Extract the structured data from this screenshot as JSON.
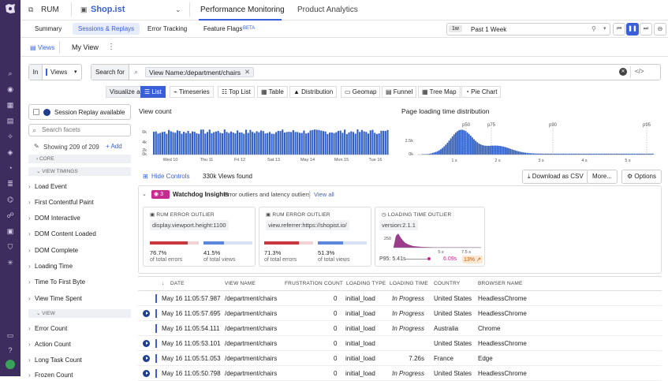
{
  "app": {
    "name": "RUM",
    "app_name": "Shop.ist"
  },
  "header_tabs": [
    "Performance Monitoring",
    "Product Analytics"
  ],
  "subtabs": [
    "Summary",
    "Sessions & Replays",
    "Error Tracking",
    "Feature Flags"
  ],
  "beta_label": "BETA",
  "time": {
    "short": "1w",
    "label": "Past 1 Week"
  },
  "views_tab": "Views",
  "my_view": "My View",
  "query": {
    "in_label": "In",
    "scope": "Views",
    "search_for": "Search for",
    "value": "View Name:/department/chairs"
  },
  "visualize_as": "Visualize as",
  "viz_options": [
    "List",
    "Timeseries",
    "Top List",
    "Table",
    "Distribution",
    "Geomap",
    "Funnel",
    "Tree Map",
    "Pie Chart"
  ],
  "sidebar": {
    "replay_filter": "Session Replay available",
    "search_placeholder": "Search facets",
    "showing": "Showing 209 of 209",
    "add": "Add",
    "sections": [
      "CORE",
      "VIEW TIMINGS",
      "VIEW"
    ],
    "timings": [
      "Load Event",
      "First Contentful Paint",
      "DOM Interactive",
      "DOM Content Loaded",
      "DOM Complete",
      "Loading Time",
      "Time To First Byte",
      "View Time Spent"
    ],
    "view_facets": [
      "Error Count",
      "Action Count",
      "Long Task Count",
      "Frozen Count"
    ]
  },
  "count_chart": {
    "title": "View count",
    "yticks": [
      "6k",
      "4k",
      "2k",
      "0k"
    ],
    "xticks": [
      "Wed 10",
      "Thu 11",
      "Fri 12",
      "Sat 13",
      "May 14",
      "Mon 15",
      "Tue 16"
    ]
  },
  "dist_chart": {
    "title": "Page loading time distribution",
    "yticks": [
      "2.5k",
      "0k"
    ],
    "xticks": [
      "1 s",
      "2 s",
      "3 s",
      "4 s",
      "5 s"
    ],
    "percentiles": [
      "p50",
      "p75",
      "p90",
      "p95"
    ]
  },
  "controls": {
    "hide": "Hide Controls",
    "found": "330k Views found",
    "download": "Download as CSV",
    "more": "More...",
    "options": "Options"
  },
  "watchdog": {
    "count": "3",
    "title": "Watchdog Insights",
    "subtitle": "Error outliers and latency outliers",
    "view_all": "View all"
  },
  "cards": [
    {
      "type": "RUM ERROR OUTLIER",
      "value": "display.viewport.height:1100",
      "p1": "76.7%",
      "l1": "of total errors",
      "p2": "41.5%",
      "l2": "of total views"
    },
    {
      "type": "RUM ERROR OUTLIER",
      "value": "view.referrer:https://shopist.io/",
      "p1": "71.3%",
      "l1": "of total errors",
      "p2": "51.3%",
      "l2": "of total views"
    },
    {
      "type": "LOADING TIME OUTLIER",
      "value": "version:2.1.1",
      "ytick": "250",
      "x1": "5 s",
      "x2": "7.5 s",
      "p95": "P95: 5.41s",
      "outlier": "6.09s",
      "delta": "13%"
    }
  ],
  "table": {
    "headers": [
      "DATE",
      "VIEW NAME",
      "FRUSTRATION COUNT",
      "LOADING TYPE",
      "LOADING TIME",
      "COUNTRY",
      "BROWSER NAME"
    ],
    "rows": [
      {
        "date": "May 16 11:05:57.987",
        "view": "/department/chairs",
        "frustration": "0",
        "type": "initial_load",
        "time": "In Progress",
        "country": "United States",
        "browser": "HeadlessChrome",
        "replay": false
      },
      {
        "date": "May 16 11:05:57.695",
        "view": "/department/chairs",
        "frustration": "0",
        "type": "initial_load",
        "time": "In Progress",
        "country": "United States",
        "browser": "HeadlessChrome",
        "replay": true
      },
      {
        "date": "May 16 11:05:54.111",
        "view": "/department/chairs",
        "frustration": "0",
        "type": "initial_load",
        "time": "In Progress",
        "country": "Australia",
        "browser": "Chrome",
        "replay": false
      },
      {
        "date": "May 16 11:05:53.101",
        "view": "/department/chairs",
        "frustration": "0",
        "type": "initial_load",
        "time": "",
        "country": "United States",
        "browser": "HeadlessChrome",
        "replay": true
      },
      {
        "date": "May 16 11:05:51.053",
        "view": "/department/chairs",
        "frustration": "0",
        "type": "initial_load",
        "time": "7.26s",
        "country": "France",
        "browser": "Edge",
        "replay": true
      },
      {
        "date": "May 16 11:05:50.798",
        "view": "/department/chairs",
        "frustration": "0",
        "type": "initial_load",
        "time": "In Progress",
        "country": "United States",
        "browser": "HeadlessChrome",
        "replay": true
      }
    ]
  },
  "colors": {
    "accent": "#3a60d8",
    "rail": "#3c2d5e",
    "error": "#c8373e",
    "watchdog": "#c72a8f"
  }
}
